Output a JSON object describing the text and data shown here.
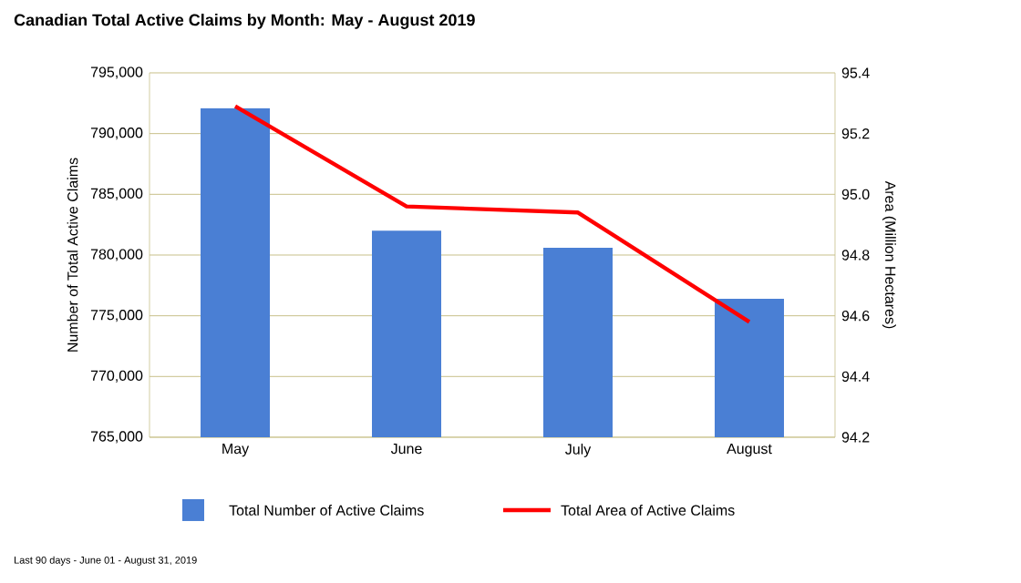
{
  "chart_data": {
    "type": "bar",
    "title": "Canadian Total Active Claims by Month: May - August 2019",
    "ylabel": "Number of Total Active Claims",
    "y2label": "Area (Million Hectares)",
    "categories": [
      "May",
      "June",
      "July",
      "August"
    ],
    "series": [
      {
        "name": "Total Number of Active Claims",
        "color": "#4a7fd4",
        "values": [
          792100,
          782000,
          780600,
          776400
        ]
      },
      {
        "name": "Total Area of Active Claims",
        "type": "line",
        "axis": "y2",
        "color": "#ff0000",
        "values": [
          95.29,
          94.96,
          94.94,
          94.58
        ]
      }
    ],
    "ylim": [
      765000,
      795000
    ],
    "yticks": [
      {
        "value": 765000,
        "label": "765,000"
      },
      {
        "value": 770000,
        "label": "770,000"
      },
      {
        "value": 775000,
        "label": "775,000"
      },
      {
        "value": 780000,
        "label": "780,000"
      },
      {
        "value": 785000,
        "label": "785,000"
      },
      {
        "value": 790000,
        "label": "790,000"
      },
      {
        "value": 795000,
        "label": "795,000"
      }
    ],
    "y2lim": [
      94.2,
      95.4
    ],
    "y2ticks": [
      {
        "value": 94.2,
        "label": "94.2"
      },
      {
        "value": 94.4,
        "label": "94.4"
      },
      {
        "value": 94.6,
        "label": "94.6"
      },
      {
        "value": 94.8,
        "label": "94.8"
      },
      {
        "value": 95.0,
        "label": "95.0"
      },
      {
        "value": 95.2,
        "label": "95.2"
      },
      {
        "value": 95.4,
        "label": "95.4"
      }
    ],
    "grid": "y",
    "legend": "bottom",
    "marker": "none",
    "annotations": [
      "Last 90 days - June 01 - August 31, 2019"
    ]
  }
}
